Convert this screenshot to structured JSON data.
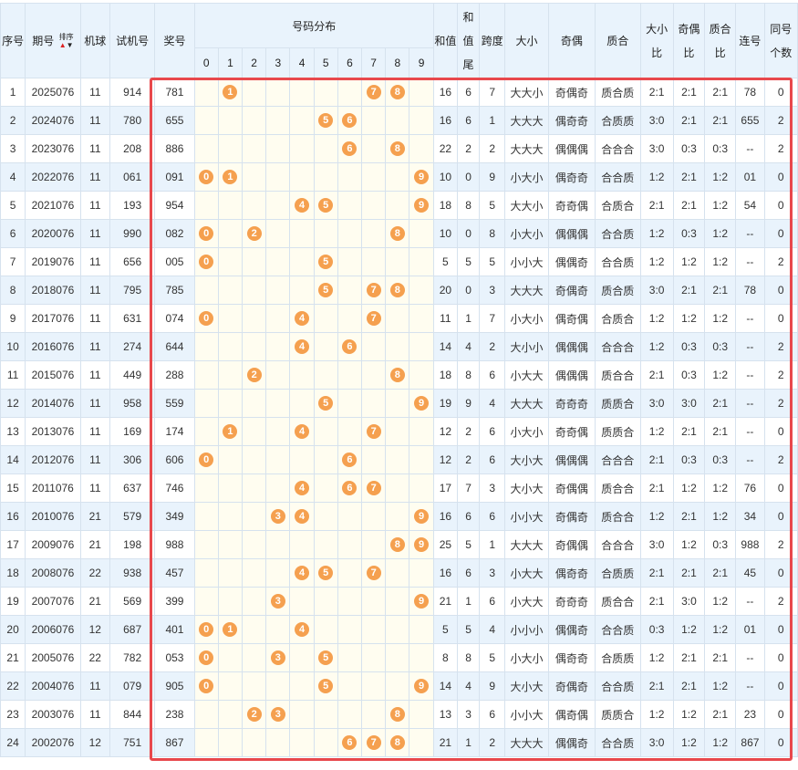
{
  "headers": {
    "seq": "序号",
    "period": "期号",
    "sort_label": "排序",
    "machine": "机球",
    "test_no": "试机号",
    "prize_no": "奖号",
    "dist_group": "号码分布",
    "digits": [
      "0",
      "1",
      "2",
      "3",
      "4",
      "5",
      "6",
      "7",
      "8",
      "9"
    ],
    "sum": "和值",
    "sum_tail": "和值尾",
    "span": "跨度",
    "size": "大小",
    "odd_even": "奇偶",
    "prime_comp": "质合",
    "size_ratio": "大小比",
    "oe_ratio": "奇偶比",
    "pc_ratio": "质合比",
    "consec": "连号",
    "same_count": "同号个数"
  },
  "colors": {
    "ball": "#f5a04f",
    "highlight_border": "#e8484c",
    "row_alt": "#e9f3fc"
  },
  "rows": [
    {
      "seq": "1",
      "period": "2025076",
      "machine": "11",
      "test": "914",
      "prize": "781",
      "balls": [
        1,
        7,
        8
      ],
      "sum": "16",
      "tail": "6",
      "span": "7",
      "size": "大大小",
      "oe": "奇偶奇",
      "pc": "质合质",
      "sr": "2:1",
      "oer": "2:1",
      "pcr": "2:1",
      "consec": "78",
      "same": "0"
    },
    {
      "seq": "2",
      "period": "2024076",
      "machine": "11",
      "test": "780",
      "prize": "655",
      "balls": [
        5,
        6
      ],
      "sum": "16",
      "tail": "6",
      "span": "1",
      "size": "大大大",
      "oe": "偶奇奇",
      "pc": "合质质",
      "sr": "3:0",
      "oer": "2:1",
      "pcr": "2:1",
      "consec": "655",
      "same": "2"
    },
    {
      "seq": "3",
      "period": "2023076",
      "machine": "11",
      "test": "208",
      "prize": "886",
      "balls": [
        6,
        8
      ],
      "sum": "22",
      "tail": "2",
      "span": "2",
      "size": "大大大",
      "oe": "偶偶偶",
      "pc": "合合合",
      "sr": "3:0",
      "oer": "0:3",
      "pcr": "0:3",
      "consec": "--",
      "same": "2"
    },
    {
      "seq": "4",
      "period": "2022076",
      "machine": "11",
      "test": "061",
      "prize": "091",
      "balls": [
        0,
        1,
        9
      ],
      "sum": "10",
      "tail": "0",
      "span": "9",
      "size": "小大小",
      "oe": "偶奇奇",
      "pc": "合合质",
      "sr": "1:2",
      "oer": "2:1",
      "pcr": "1:2",
      "consec": "01",
      "same": "0"
    },
    {
      "seq": "5",
      "period": "2021076",
      "machine": "11",
      "test": "193",
      "prize": "954",
      "balls": [
        4,
        5,
        9
      ],
      "sum": "18",
      "tail": "8",
      "span": "5",
      "size": "大大小",
      "oe": "奇奇偶",
      "pc": "合质合",
      "sr": "2:1",
      "oer": "2:1",
      "pcr": "1:2",
      "consec": "54",
      "same": "0"
    },
    {
      "seq": "6",
      "period": "2020076",
      "machine": "11",
      "test": "990",
      "prize": "082",
      "balls": [
        0,
        2,
        8
      ],
      "sum": "10",
      "tail": "0",
      "span": "8",
      "size": "小大小",
      "oe": "偶偶偶",
      "pc": "合合质",
      "sr": "1:2",
      "oer": "0:3",
      "pcr": "1:2",
      "consec": "--",
      "same": "0"
    },
    {
      "seq": "7",
      "period": "2019076",
      "machine": "11",
      "test": "656",
      "prize": "005",
      "balls": [
        0,
        5
      ],
      "sum": "5",
      "tail": "5",
      "span": "5",
      "size": "小小大",
      "oe": "偶偶奇",
      "pc": "合合质",
      "sr": "1:2",
      "oer": "1:2",
      "pcr": "1:2",
      "consec": "--",
      "same": "2"
    },
    {
      "seq": "8",
      "period": "2018076",
      "machine": "11",
      "test": "795",
      "prize": "785",
      "balls": [
        5,
        7,
        8
      ],
      "sum": "20",
      "tail": "0",
      "span": "3",
      "size": "大大大",
      "oe": "奇偶奇",
      "pc": "质合质",
      "sr": "3:0",
      "oer": "2:1",
      "pcr": "2:1",
      "consec": "78",
      "same": "0"
    },
    {
      "seq": "9",
      "period": "2017076",
      "machine": "11",
      "test": "631",
      "prize": "074",
      "balls": [
        0,
        4,
        7
      ],
      "sum": "11",
      "tail": "1",
      "span": "7",
      "size": "小大小",
      "oe": "偶奇偶",
      "pc": "合质合",
      "sr": "1:2",
      "oer": "1:2",
      "pcr": "1:2",
      "consec": "--",
      "same": "0"
    },
    {
      "seq": "10",
      "period": "2016076",
      "machine": "11",
      "test": "274",
      "prize": "644",
      "balls": [
        4,
        6
      ],
      "sum": "14",
      "tail": "4",
      "span": "2",
      "size": "大小小",
      "oe": "偶偶偶",
      "pc": "合合合",
      "sr": "1:2",
      "oer": "0:3",
      "pcr": "0:3",
      "consec": "--",
      "same": "2"
    },
    {
      "seq": "11",
      "period": "2015076",
      "machine": "11",
      "test": "449",
      "prize": "288",
      "balls": [
        2,
        8
      ],
      "sum": "18",
      "tail": "8",
      "span": "6",
      "size": "小大大",
      "oe": "偶偶偶",
      "pc": "质合合",
      "sr": "2:1",
      "oer": "0:3",
      "pcr": "1:2",
      "consec": "--",
      "same": "2"
    },
    {
      "seq": "12",
      "period": "2014076",
      "machine": "11",
      "test": "958",
      "prize": "559",
      "balls": [
        5,
        9
      ],
      "sum": "19",
      "tail": "9",
      "span": "4",
      "size": "大大大",
      "oe": "奇奇奇",
      "pc": "质质合",
      "sr": "3:0",
      "oer": "3:0",
      "pcr": "2:1",
      "consec": "--",
      "same": "2"
    },
    {
      "seq": "13",
      "period": "2013076",
      "machine": "11",
      "test": "169",
      "prize": "174",
      "balls": [
        1,
        4,
        7
      ],
      "sum": "12",
      "tail": "2",
      "span": "6",
      "size": "小大小",
      "oe": "奇奇偶",
      "pc": "质质合",
      "sr": "1:2",
      "oer": "2:1",
      "pcr": "2:1",
      "consec": "--",
      "same": "0"
    },
    {
      "seq": "14",
      "period": "2012076",
      "machine": "11",
      "test": "306",
      "prize": "606",
      "balls": [
        0,
        6
      ],
      "sum": "12",
      "tail": "2",
      "span": "6",
      "size": "大小大",
      "oe": "偶偶偶",
      "pc": "合合合",
      "sr": "2:1",
      "oer": "0:3",
      "pcr": "0:3",
      "consec": "--",
      "same": "2"
    },
    {
      "seq": "15",
      "period": "2011076",
      "machine": "11",
      "test": "637",
      "prize": "746",
      "balls": [
        4,
        6,
        7
      ],
      "sum": "17",
      "tail": "7",
      "span": "3",
      "size": "大小大",
      "oe": "奇偶偶",
      "pc": "质合合",
      "sr": "2:1",
      "oer": "1:2",
      "pcr": "1:2",
      "consec": "76",
      "same": "0"
    },
    {
      "seq": "16",
      "period": "2010076",
      "machine": "21",
      "test": "579",
      "prize": "349",
      "balls": [
        3,
        4,
        9
      ],
      "sum": "16",
      "tail": "6",
      "span": "6",
      "size": "小小大",
      "oe": "奇偶奇",
      "pc": "质合合",
      "sr": "1:2",
      "oer": "2:1",
      "pcr": "1:2",
      "consec": "34",
      "same": "0"
    },
    {
      "seq": "17",
      "period": "2009076",
      "machine": "21",
      "test": "198",
      "prize": "988",
      "balls": [
        8,
        9
      ],
      "sum": "25",
      "tail": "5",
      "span": "1",
      "size": "大大大",
      "oe": "奇偶偶",
      "pc": "合合合",
      "sr": "3:0",
      "oer": "1:2",
      "pcr": "0:3",
      "consec": "988",
      "same": "2"
    },
    {
      "seq": "18",
      "period": "2008076",
      "machine": "22",
      "test": "938",
      "prize": "457",
      "balls": [
        4,
        5,
        7
      ],
      "sum": "16",
      "tail": "6",
      "span": "3",
      "size": "小大大",
      "oe": "偶奇奇",
      "pc": "合质质",
      "sr": "2:1",
      "oer": "2:1",
      "pcr": "2:1",
      "consec": "45",
      "same": "0"
    },
    {
      "seq": "19",
      "period": "2007076",
      "machine": "21",
      "test": "569",
      "prize": "399",
      "balls": [
        3,
        9
      ],
      "sum": "21",
      "tail": "1",
      "span": "6",
      "size": "小大大",
      "oe": "奇奇奇",
      "pc": "质合合",
      "sr": "2:1",
      "oer": "3:0",
      "pcr": "1:2",
      "consec": "--",
      "same": "2"
    },
    {
      "seq": "20",
      "period": "2006076",
      "machine": "12",
      "test": "687",
      "prize": "401",
      "balls": [
        0,
        1,
        4
      ],
      "sum": "5",
      "tail": "5",
      "span": "4",
      "size": "小小小",
      "oe": "偶偶奇",
      "pc": "合合质",
      "sr": "0:3",
      "oer": "1:2",
      "pcr": "1:2",
      "consec": "01",
      "same": "0"
    },
    {
      "seq": "21",
      "period": "2005076",
      "machine": "22",
      "test": "782",
      "prize": "053",
      "balls": [
        0,
        3,
        5
      ],
      "sum": "8",
      "tail": "8",
      "span": "5",
      "size": "小大小",
      "oe": "偶奇奇",
      "pc": "合质质",
      "sr": "1:2",
      "oer": "2:1",
      "pcr": "2:1",
      "consec": "--",
      "same": "0"
    },
    {
      "seq": "22",
      "period": "2004076",
      "machine": "11",
      "test": "079",
      "prize": "905",
      "balls": [
        0,
        5,
        9
      ],
      "sum": "14",
      "tail": "4",
      "span": "9",
      "size": "大小大",
      "oe": "奇偶奇",
      "pc": "合合质",
      "sr": "2:1",
      "oer": "2:1",
      "pcr": "1:2",
      "consec": "--",
      "same": "0"
    },
    {
      "seq": "23",
      "period": "2003076",
      "machine": "11",
      "test": "844",
      "prize": "238",
      "balls": [
        2,
        3,
        8
      ],
      "sum": "13",
      "tail": "3",
      "span": "6",
      "size": "小小大",
      "oe": "偶奇偶",
      "pc": "质质合",
      "sr": "1:2",
      "oer": "1:2",
      "pcr": "2:1",
      "consec": "23",
      "same": "0"
    },
    {
      "seq": "24",
      "period": "2002076",
      "machine": "12",
      "test": "751",
      "prize": "867",
      "balls": [
        6,
        7,
        8
      ],
      "sum": "21",
      "tail": "1",
      "span": "2",
      "size": "大大大",
      "oe": "偶偶奇",
      "pc": "合合质",
      "sr": "3:0",
      "oer": "1:2",
      "pcr": "1:2",
      "consec": "867",
      "same": "0"
    }
  ]
}
